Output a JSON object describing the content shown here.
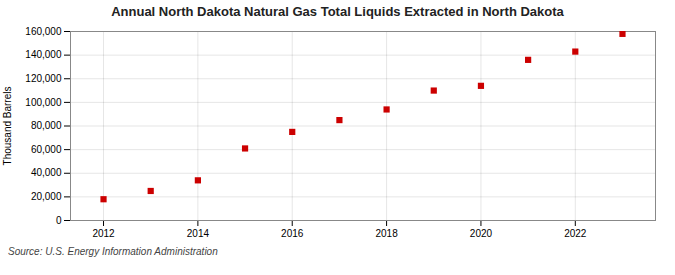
{
  "chart_data": {
    "type": "scatter",
    "title": "Annual North Dakota Natural Gas Total Liquids Extracted in North Dakota",
    "ylabel": "Thousand Barrels",
    "source": "Source: U.S. Energy Information Administration",
    "x": [
      2012,
      2013,
      2014,
      2015,
      2016,
      2017,
      2018,
      2019,
      2020,
      2021,
      2022,
      2023
    ],
    "values": [
      18000,
      25000,
      34000,
      61000,
      75000,
      85000,
      94000,
      110000,
      114000,
      136000,
      143000,
      158000
    ],
    "color": "#cc0000",
    "marker": "square",
    "xlim": [
      2011.3,
      2023.7
    ],
    "xticks": [
      2012,
      2014,
      2016,
      2018,
      2020,
      2022
    ],
    "ylim": [
      0,
      160000
    ],
    "yticks": [
      0,
      {
        "value": 20000,
        "label": "20,000"
      },
      {
        "value": 40000,
        "label": "40,000"
      },
      {
        "value": 60000,
        "label": "60,000"
      },
      {
        "value": 80000,
        "label": "80,000"
      },
      {
        "value": 100000,
        "label": "100,000"
      },
      {
        "value": 120000,
        "label": "120,000"
      },
      {
        "value": 140000,
        "label": "140,000"
      },
      {
        "value": 160000,
        "label": "160,000"
      }
    ],
    "grid": true
  }
}
